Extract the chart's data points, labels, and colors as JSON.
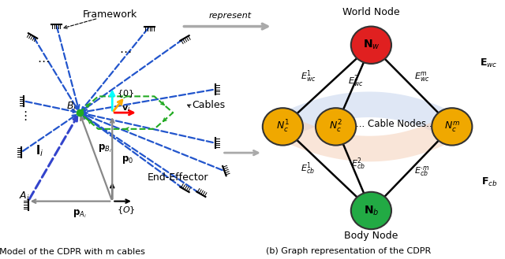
{
  "left_caption": "(a) Model of the CDPR with m cables",
  "right_caption": "(b) Graph representation of the CDPR",
  "represent_text": "represent",
  "world_node_color": "#e02020",
  "cable_node_color": "#f0a800",
  "body_node_color": "#22aa44",
  "edge_top_color": "#c5d4ee",
  "edge_bottom_color": "#f5d0b8",
  "bg_color": "#ffffff",
  "blue_cable": "#2255cc",
  "green_frame": "#22aa22",
  "gray_line": "#888888"
}
